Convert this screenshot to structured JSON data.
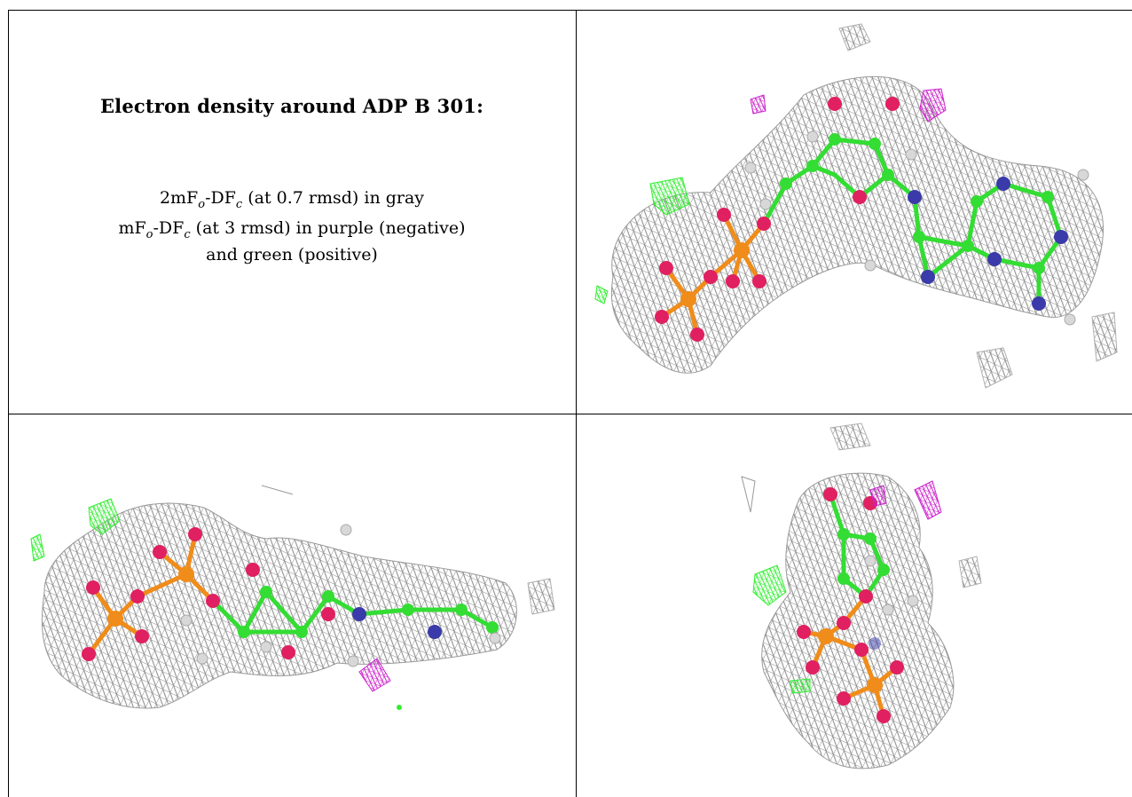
{
  "caption": {
    "title": "Electron density around ADP B 301:",
    "line1_prefix": "2mF",
    "line1_sub1": "o",
    "line1_mid": "-DF",
    "line1_sub2": "c",
    "line1_suffix": " (at 0.7 rmsd) in gray",
    "line2_prefix": "mF",
    "line2_sub1": "o",
    "line2_mid": "-DF",
    "line2_sub2": "c",
    "line2_suffix": " (at 3 rmsd) in purple (negative)",
    "line3": "and green (positive)"
  },
  "colors": {
    "mesh_gray": "#9a9a9a",
    "mesh_purple": "#cc22cc",
    "mesh_green": "#33ee33",
    "carbon": "#33dd33",
    "oxygen": "#e02060",
    "nitrogen": "#3a3aaa",
    "phosphorus": "#f08c1a",
    "hydrogen": "#d8d8d8"
  },
  "panels": [
    {
      "name": "view-top-right"
    },
    {
      "name": "view-bottom-left"
    },
    {
      "name": "view-bottom-right"
    }
  ]
}
